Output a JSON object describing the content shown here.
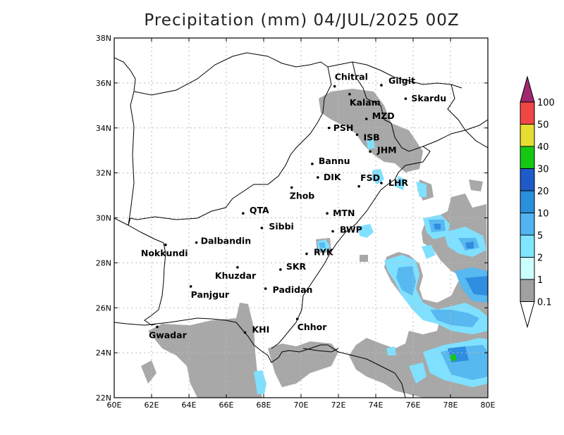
{
  "title": "Precipitation (mm) 04/JUL/2025 00Z",
  "x_ticks": [
    "60E",
    "62E",
    "64E",
    "66E",
    "68E",
    "70E",
    "72E",
    "74E",
    "76E",
    "78E",
    "80E"
  ],
  "y_ticks": [
    "22N",
    "24N",
    "26N",
    "28N",
    "30N",
    "32N",
    "34N",
    "36N",
    "38N"
  ],
  "x_tick_values": [
    60,
    62,
    64,
    66,
    68,
    70,
    72,
    74,
    76,
    78,
    80
  ],
  "y_tick_values": [
    22,
    24,
    26,
    28,
    30,
    32,
    34,
    36,
    38
  ],
  "lon_range": [
    60,
    80
  ],
  "lat_range": [
    22,
    38
  ],
  "grid": true,
  "cities": [
    {
      "name": "Chitral",
      "lon": 71.8,
      "lat": 35.85
    },
    {
      "name": "Gilgit",
      "lon": 74.3,
      "lat": 35.9
    },
    {
      "name": "Kalam",
      "lon": 72.6,
      "lat": 35.5
    },
    {
      "name": "Skardu",
      "lon": 75.6,
      "lat": 35.3
    },
    {
      "name": "MZD",
      "lon": 73.5,
      "lat": 34.4
    },
    {
      "name": "PSH",
      "lon": 71.5,
      "lat": 34.0
    },
    {
      "name": "ISB",
      "lon": 73.0,
      "lat": 33.7
    },
    {
      "name": "JHM",
      "lon": 73.7,
      "lat": 32.95
    },
    {
      "name": "Bannu",
      "lon": 70.6,
      "lat": 32.4
    },
    {
      "name": "DIK",
      "lon": 70.9,
      "lat": 31.8
    },
    {
      "name": "FSD",
      "lon": 73.1,
      "lat": 31.4
    },
    {
      "name": "LHR",
      "lon": 74.3,
      "lat": 31.55
    },
    {
      "name": "Zhob",
      "lon": 69.5,
      "lat": 31.35
    },
    {
      "name": "QTA",
      "lon": 66.9,
      "lat": 30.2
    },
    {
      "name": "MTN",
      "lon": 71.4,
      "lat": 30.2
    },
    {
      "name": "Sibbi",
      "lon": 67.9,
      "lat": 29.55
    },
    {
      "name": "BWP",
      "lon": 71.7,
      "lat": 29.4
    },
    {
      "name": "Nokkundi",
      "lon": 62.75,
      "lat": 28.8
    },
    {
      "name": "Dalbandin",
      "lon": 64.4,
      "lat": 28.9
    },
    {
      "name": "RYK",
      "lon": 70.3,
      "lat": 28.4
    },
    {
      "name": "Khuzdar",
      "lon": 66.6,
      "lat": 27.8
    },
    {
      "name": "SKR",
      "lon": 68.9,
      "lat": 27.7
    },
    {
      "name": "Padidan",
      "lon": 68.1,
      "lat": 26.85
    },
    {
      "name": "Panjgur",
      "lon": 64.1,
      "lat": 26.95
    },
    {
      "name": "Chhor",
      "lon": 69.8,
      "lat": 25.5
    },
    {
      "name": "KHI",
      "lon": 67.0,
      "lat": 24.9
    },
    {
      "name": "Gwadar",
      "lon": 62.3,
      "lat": 25.15
    }
  ],
  "legend": {
    "levels": [
      "0.1",
      "1",
      "2",
      "5",
      "10",
      "20",
      "30",
      "40",
      "50",
      "100"
    ],
    "colors": [
      "#a0a0a0",
      "#ccffff",
      "#80e6ff",
      "#50b4f0",
      "#2890dc",
      "#1e5ac8",
      "#14c814",
      "#e6dc32",
      "#f04646",
      "#a0286e"
    ]
  },
  "colors": {
    "gray": "#a8a8a8",
    "cyan_light": "#c8f4ff",
    "cyan": "#80e0ff",
    "blue_light": "#58b8f0",
    "blue": "#2f8ee0",
    "blue_dark": "#1e5ac8",
    "green": "#14c814",
    "border": "#000000",
    "grid": "#bbbbbb"
  }
}
